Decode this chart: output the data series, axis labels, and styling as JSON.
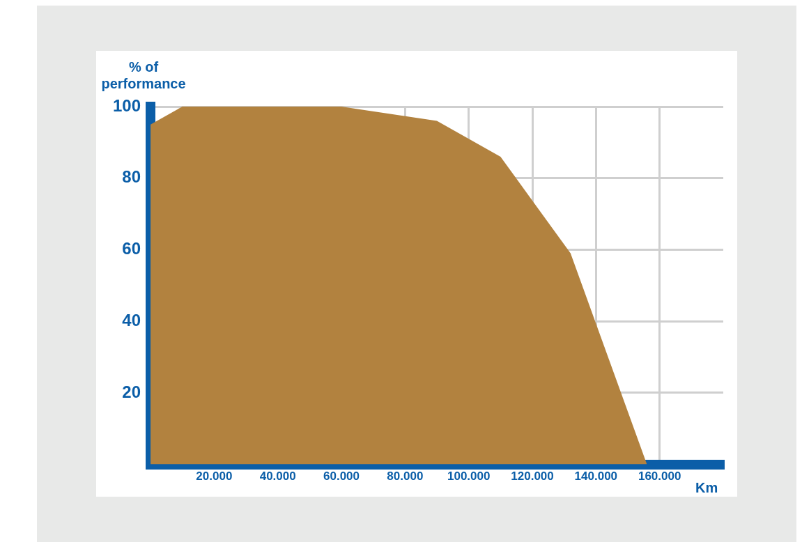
{
  "chart_data": {
    "type": "area",
    "xlabel": "Km",
    "ylabel": "% of performance",
    "x": [
      0,
      10000,
      60000,
      90000,
      110000,
      132000,
      156000
    ],
    "series": [
      {
        "color": "#b2823f",
        "values": [
          95,
          100,
          100,
          96,
          86,
          59,
          0
        ]
      }
    ],
    "xlim": [
      0,
      180000
    ],
    "ylim": [
      0,
      100
    ],
    "xticks": [
      {
        "value": 20000,
        "label": "20.000"
      },
      {
        "value": 40000,
        "label": "40.000"
      },
      {
        "value": 60000,
        "label": "60.000"
      },
      {
        "value": 80000,
        "label": "80.000"
      },
      {
        "value": 100000,
        "label": "100.000"
      },
      {
        "value": 120000,
        "label": "120.000"
      },
      {
        "value": 140000,
        "label": "140.000"
      },
      {
        "value": 160000,
        "label": "160.000"
      }
    ],
    "yticks": [
      20,
      40,
      60,
      80,
      100
    ],
    "grid": true,
    "legend": false
  }
}
